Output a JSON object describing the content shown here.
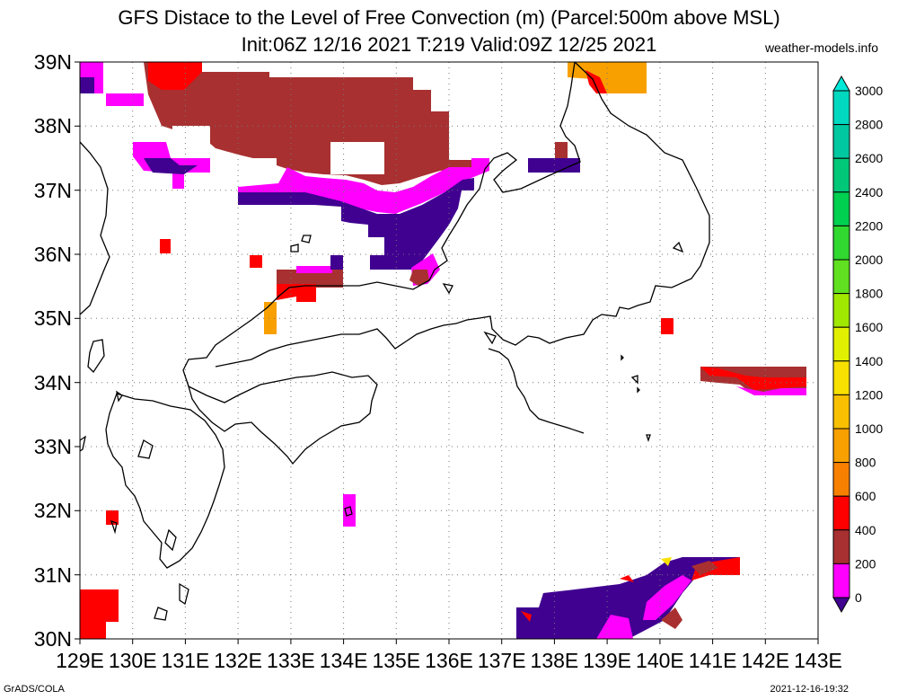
{
  "title_line1": "GFS Distace to the Level of Free Convection (m) (Parcel:500m above MSL)",
  "title_line2": "Init:06Z 12/16 2021 T:219 Valid:09Z 12/25 2021",
  "credit": "weather-models.info",
  "footer_left": "GrADS/COLA",
  "footer_right": "2021-12-16-19:32",
  "lat_labels": [
    "39N",
    "38N",
    "37N",
    "36N",
    "35N",
    "34N",
    "33N",
    "32N",
    "31N",
    "30N"
  ],
  "lon_labels": [
    "129E",
    "130E",
    "131E",
    "132E",
    "133E",
    "134E",
    "135E",
    "136E",
    "137E",
    "138E",
    "139E",
    "140E",
    "141E",
    "142E",
    "143E"
  ],
  "colorbar": {
    "labels": [
      "3000",
      "2800",
      "2600",
      "2400",
      "2200",
      "2000",
      "1800",
      "1600",
      "1400",
      "1200",
      "1000",
      "800",
      "600",
      "400",
      "200",
      "0"
    ],
    "colors": [
      "#00e8d8",
      "#00d8c0",
      "#00c8a0",
      "#00c878",
      "#00d050",
      "#30d830",
      "#60e020",
      "#a0e800",
      "#e0f000",
      "#f8e000",
      "#f8c000",
      "#f8a000",
      "#f88000",
      "#ff0000",
      "#a83030",
      "#ff00ff",
      "#400090"
    ]
  }
}
